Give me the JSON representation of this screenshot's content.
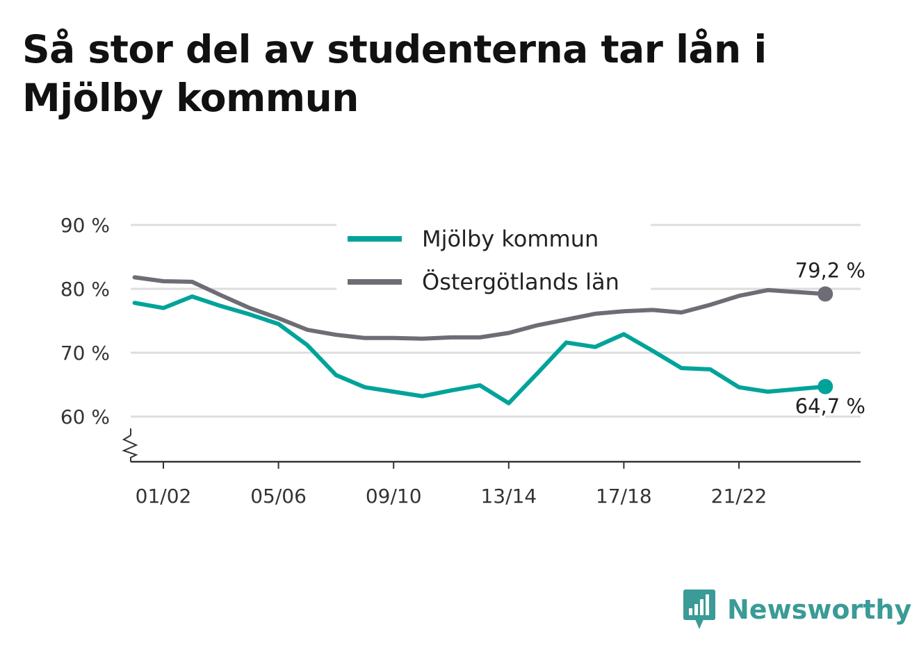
{
  "title": "Så stor del av studenterna tar lån i Mjölby kommun",
  "brand": "Newsworthy",
  "colors": {
    "mjolby": "#00a39a",
    "lan": "#6e6d75",
    "grid": "#dddddd",
    "axis": "#333333",
    "brand": "#3a9b97"
  },
  "chart_data": {
    "type": "line",
    "title": "Så stor del av studenterna tar lån i Mjölby kommun",
    "xlabel": "",
    "ylabel": "",
    "x": [
      "00/01",
      "01/02",
      "02/03",
      "03/04",
      "04/05",
      "05/06",
      "06/07",
      "07/08",
      "08/09",
      "09/10",
      "10/11",
      "11/12",
      "12/13",
      "13/14",
      "14/15",
      "15/16",
      "16/17",
      "17/18",
      "18/19",
      "19/20",
      "20/21",
      "21/22",
      "22/23",
      "23/24",
      "24/25"
    ],
    "x_tick_labels": [
      "01/02",
      "05/06",
      "09/10",
      "13/14",
      "17/18",
      "21/22"
    ],
    "y_tick_labels": [
      "90 %",
      "80 %",
      "70 %",
      "60 %"
    ],
    "y_ticks": [
      90,
      80,
      70,
      60
    ],
    "ylim": [
      53,
      90
    ],
    "grid": true,
    "legend_position": "top-center",
    "series": [
      {
        "name": "Mjölby kommun",
        "color": "#00a39a",
        "values": [
          77.8,
          77.0,
          78.8,
          77.3,
          76.0,
          74.5,
          71.2,
          66.5,
          64.6,
          63.9,
          63.2,
          64.1,
          64.9,
          62.1,
          66.8,
          71.6,
          70.9,
          72.9,
          70.3,
          67.6,
          67.4,
          64.6,
          63.9,
          null,
          64.7
        ],
        "end_label": "64,7 %"
      },
      {
        "name": "Östergötlands län",
        "color": "#6e6d75",
        "values": [
          81.8,
          81.2,
          81.1,
          79.0,
          77.0,
          75.4,
          73.6,
          72.8,
          72.3,
          72.3,
          72.2,
          72.4,
          72.4,
          73.1,
          74.3,
          75.2,
          76.1,
          76.5,
          76.7,
          76.3,
          77.5,
          78.9,
          79.8,
          null,
          79.2
        ],
        "end_label": "79,2 %"
      }
    ]
  }
}
